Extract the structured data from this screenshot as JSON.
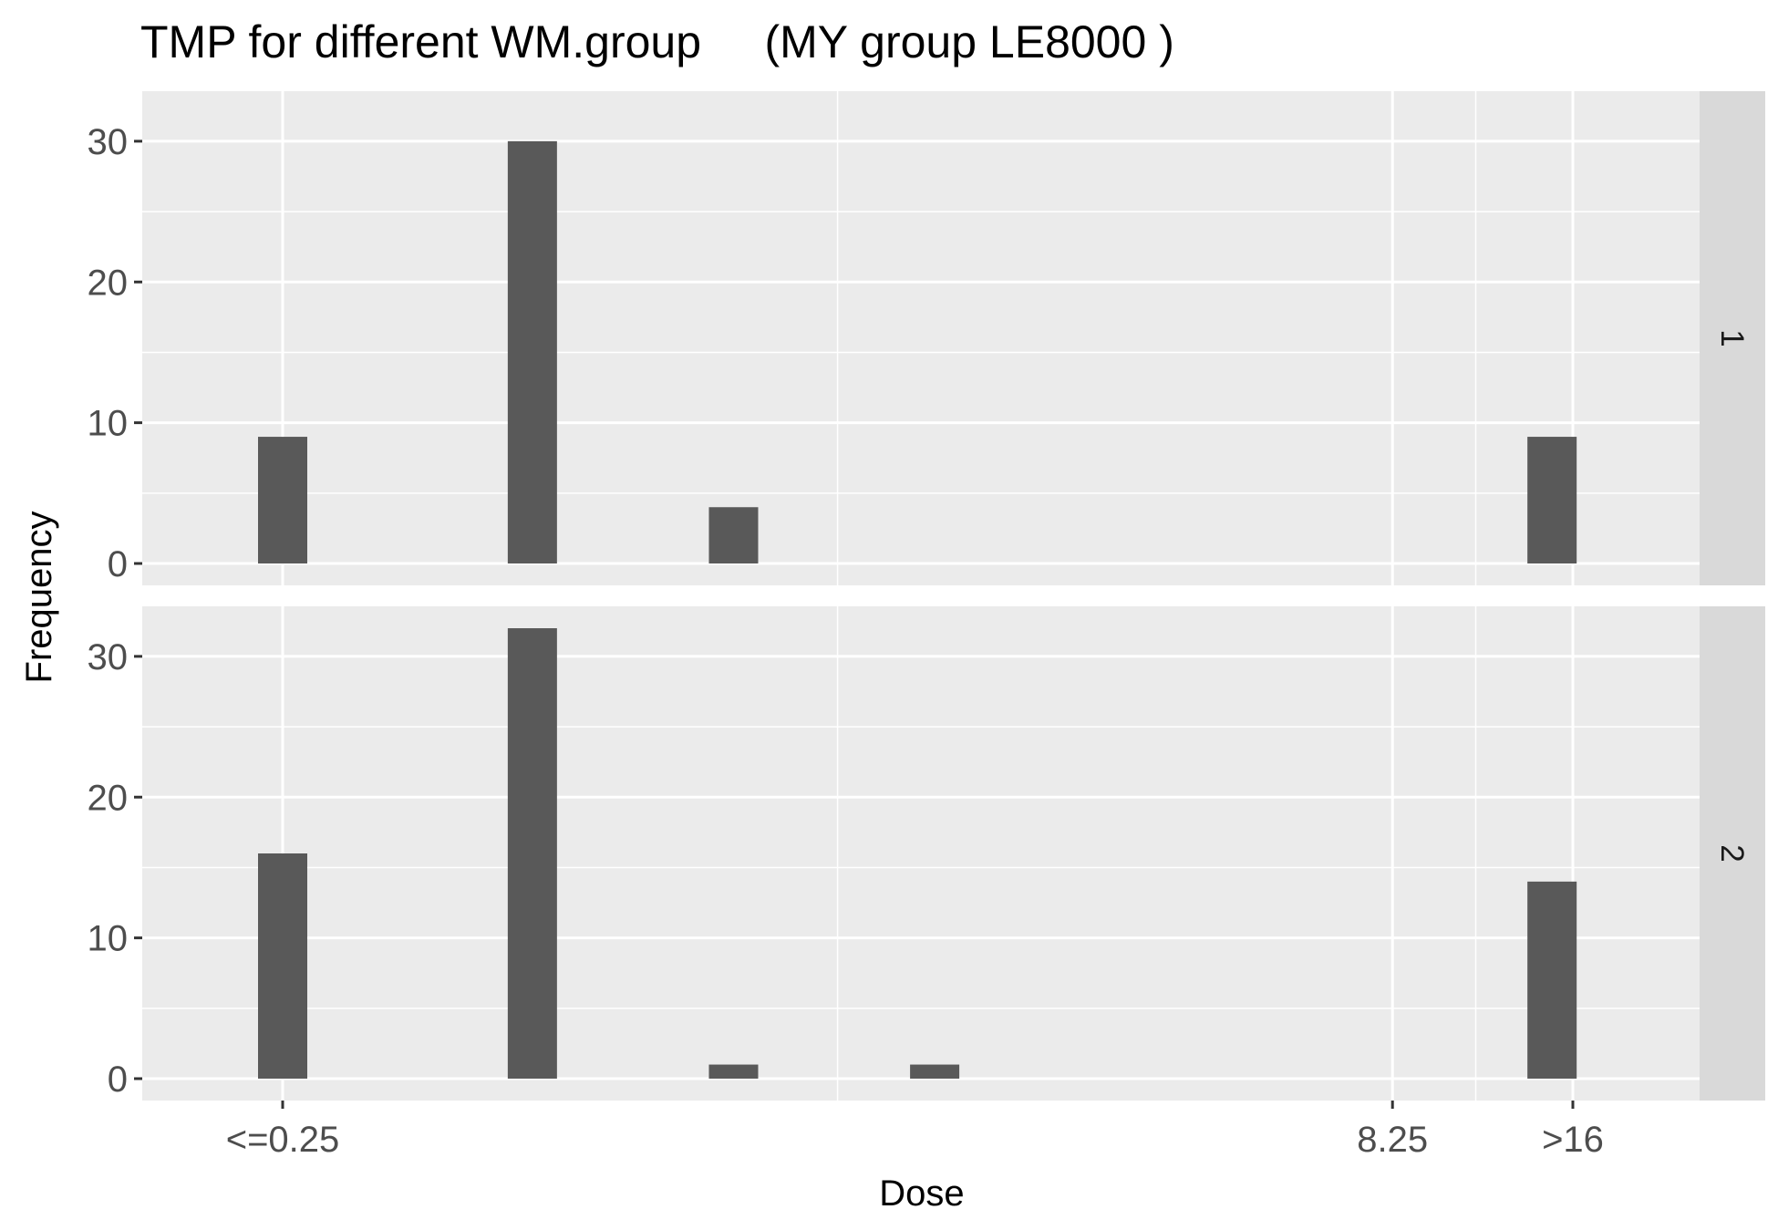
{
  "chart_data": {
    "type": "bar",
    "title": "TMP for different WM.group     (MY group LE8000 )",
    "xlabel": "Dose",
    "ylabel": "Frequency",
    "x_range": [
      0,
      16
    ],
    "y_range": [
      0,
      32
    ],
    "x_ticks": [
      {
        "x": 1,
        "label": "<=0.25"
      },
      {
        "x": 9,
        "label": "8.25"
      },
      {
        "x": 10.3,
        "label": ">16"
      }
    ],
    "x_minor_gridlines": [
      5,
      9.6
    ],
    "y_ticks": [
      0,
      10,
      20,
      30
    ],
    "y_minor_gridlines": [
      5,
      15,
      25
    ],
    "bar_width": 0.35,
    "bar_color": "#595959",
    "panel_background": "#ebebeb",
    "strip_background": "#d9d9d9",
    "grid_color": "#ffffff",
    "facets": [
      {
        "label": "1",
        "bars": [
          {
            "x": 1,
            "value": 9
          },
          {
            "x": 2.8,
            "value": 30
          },
          {
            "x": 4.25,
            "value": 4
          },
          {
            "x": 10.15,
            "value": 9
          }
        ]
      },
      {
        "label": "2",
        "bars": [
          {
            "x": 1,
            "value": 16
          },
          {
            "x": 2.8,
            "value": 32
          },
          {
            "x": 4.25,
            "value": 1
          },
          {
            "x": 5.7,
            "value": 1
          },
          {
            "x": 10.15,
            "value": 14
          }
        ]
      }
    ]
  }
}
